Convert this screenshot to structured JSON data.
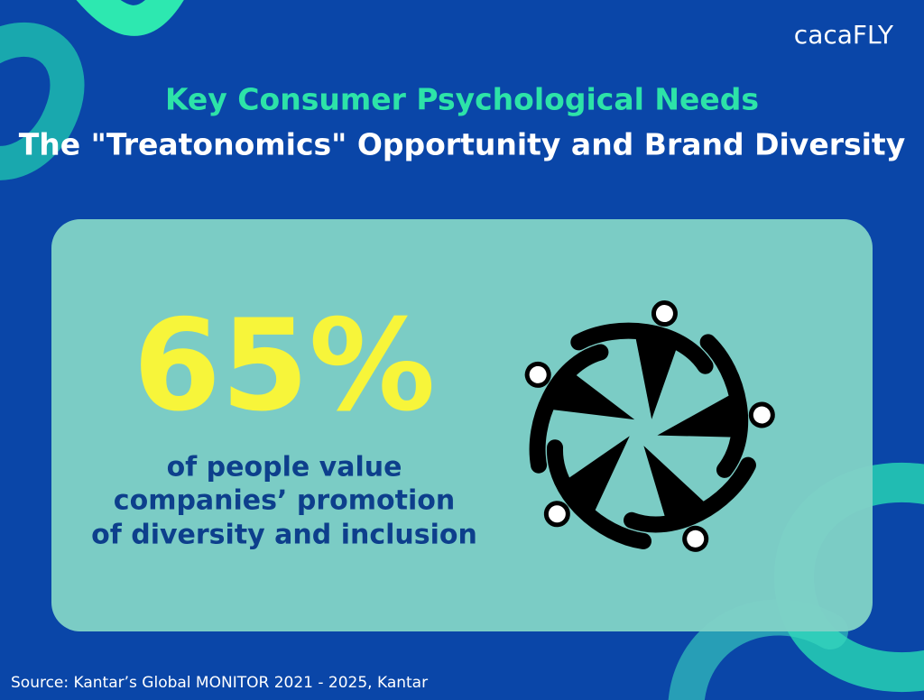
{
  "logo": "cacaFLY",
  "header": {
    "title": "Key Consumer Psychological Needs",
    "subtitle": "The \"Treatonomics\" Opportunity and Brand Diversity"
  },
  "card": {
    "stat": "65%",
    "description": [
      "of people value",
      "companies’ promotion",
      "of diversity and inclusion"
    ]
  },
  "source": "Source: Kantar’s Global MONITOR 2021 - 2025, Kantar"
}
